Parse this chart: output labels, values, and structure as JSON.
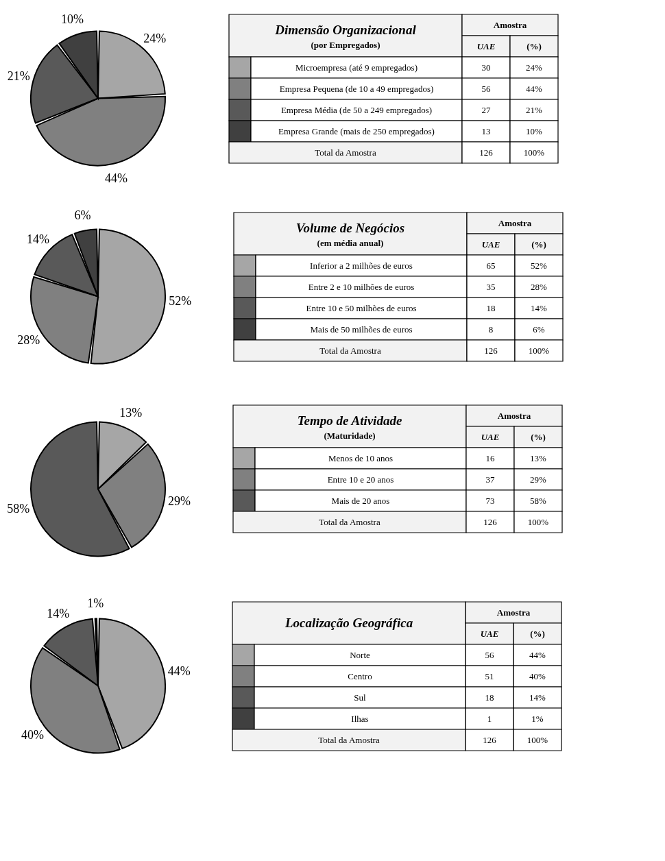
{
  "chart_data": [
    {
      "type": "pie",
      "categories": [
        null,
        null,
        null,
        null
      ],
      "values": [
        24,
        44,
        21,
        10
      ],
      "value_labels": [
        "24%",
        "44%",
        "21%",
        "10%"
      ],
      "colors": [
        "#a6a6a6",
        "#808080",
        "#595959",
        "#404040"
      ]
    },
    {
      "type": "other",
      "title": "Dimensão Organizacional",
      "subtitle": "(por Empregados)",
      "categories": [
        "Microempresa (até 9 empregados)",
        "Empresa Pequena (de 10 a 49 empregados)",
        "Empresa Média (de 50 a 249 empregados)",
        "Empresa Grande (mais de 250 empregados)"
      ],
      "values": [
        30,
        56,
        27,
        13
      ],
      "data_labels": true,
      "annotations": [
        "Amostra",
        "UAE",
        "(%)",
        "24%",
        "44%",
        "21%",
        "10%",
        "Total da Amostra",
        "126",
        "100%"
      ]
    },
    {
      "type": "pie",
      "categories": [
        null,
        null,
        null,
        null
      ],
      "values": [
        52,
        28,
        14,
        6
      ],
      "value_labels": [
        "52%",
        "28%",
        "14%",
        "6%"
      ],
      "colors": [
        "#a6a6a6",
        "#808080",
        "#595959",
        "#404040"
      ]
    },
    {
      "type": "other",
      "title": "Volume de Negócios",
      "subtitle": "(em média anual)",
      "categories": [
        "Inferior a 2 milhões de euros",
        "Entre 2 e 10 milhões de euros",
        "Entre 10 e 50 milhões de euros",
        "Mais de 50 milhões de euros"
      ],
      "values": [
        65,
        35,
        18,
        8
      ],
      "data_labels": true,
      "annotations": [
        "Amostra",
        "UAE",
        "(%)",
        "52%",
        "28%",
        "14%",
        "6%",
        "Total da Amostra",
        "126",
        "100%"
      ]
    },
    {
      "type": "pie",
      "categories": [
        null,
        null,
        null
      ],
      "values": [
        13,
        29,
        58
      ],
      "value_labels": [
        "13%",
        "29%",
        "58%"
      ],
      "colors": [
        "#a6a6a6",
        "#808080",
        "#595959"
      ]
    },
    {
      "type": "other",
      "title": "Tempo de Atividade",
      "subtitle": "(Maturidade)",
      "categories": [
        "Menos de 10 anos",
        "Entre 10 e 20 anos",
        "Mais de 20 anos"
      ],
      "values": [
        16,
        37,
        73
      ],
      "data_labels": true,
      "annotations": [
        "Amostra",
        "UAE",
        "(%)",
        "13%",
        "29%",
        "58%",
        "Total da Amostra",
        "126",
        "100%"
      ]
    },
    {
      "type": "pie",
      "categories": [
        null,
        null,
        null,
        null
      ],
      "values": [
        44,
        40,
        14,
        1
      ],
      "value_labels": [
        "44%",
        "40%",
        "14%",
        "1%"
      ],
      "colors": [
        "#a6a6a6",
        "#808080",
        "#595959",
        "#404040"
      ]
    },
    {
      "type": "other",
      "title": "Localização Geográfica",
      "categories": [
        "Norte",
        "Centro",
        "Sul",
        "Ilhas"
      ],
      "values": [
        56,
        51,
        18,
        1
      ],
      "data_labels": true,
      "annotations": [
        "Amostra",
        "UAE",
        "(%)",
        "44%",
        "40%",
        "14%",
        "1%",
        "Total da Amostra",
        "126",
        "100%"
      ]
    }
  ]
}
